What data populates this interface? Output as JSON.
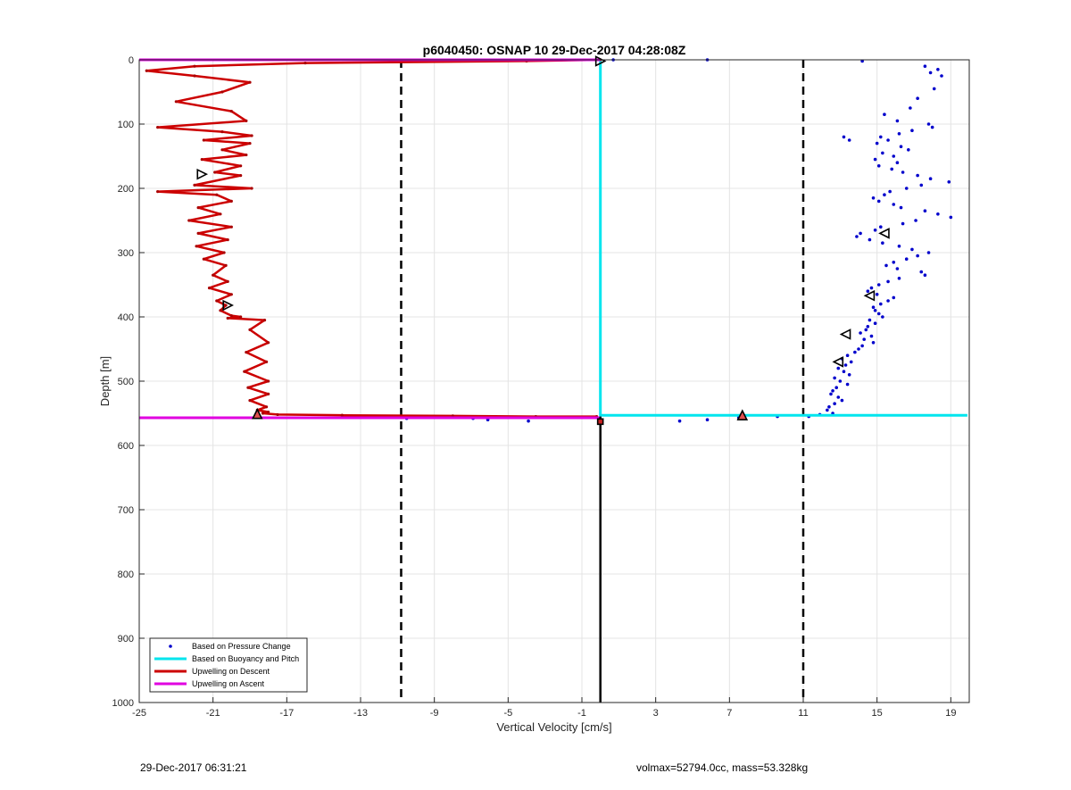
{
  "chart_data": {
    "type": "line",
    "title": "p6040450: OSNAP 10 29-Dec-2017 04:28:08Z",
    "xlabel": "Vertical Velocity [cm/s]",
    "ylabel": "Depth [m]",
    "xlim": [
      -25,
      20
    ],
    "ylim": [
      0,
      1000
    ],
    "y_reversed": true,
    "x_ticks": [
      -25,
      -21,
      -17,
      -13,
      -9,
      -5,
      -1,
      3,
      7,
      11,
      15,
      19
    ],
    "y_ticks": [
      0,
      100,
      200,
      300,
      400,
      500,
      600,
      700,
      800,
      900,
      1000
    ],
    "grid": true,
    "legend_position": "bottom-left",
    "series": [
      {
        "name": "Based on Pressure Change",
        "style": "points",
        "color": "#0000cc",
        "x": [
          14.2,
          17.6,
          18.3,
          17.9,
          18.5,
          18.1,
          17.2,
          16.8,
          15.4,
          16.1,
          17.8,
          18.0,
          16.9,
          16.2,
          15.2,
          15.6,
          15.0,
          16.3,
          16.7,
          15.3,
          15.9,
          14.9,
          16.1,
          13.2,
          13.5,
          15.1,
          15.8,
          16.4,
          17.2,
          17.9,
          18.9,
          17.4,
          16.6,
          15.7,
          15.4,
          14.8,
          15.1,
          15.9,
          16.3,
          17.6,
          18.3,
          19.0,
          17.1,
          16.4,
          15.2,
          14.9,
          14.1,
          13.9,
          14.6,
          15.3,
          16.2,
          16.9,
          17.8,
          17.2,
          16.6,
          15.9,
          15.5,
          16.1,
          17.4,
          17.6,
          16.2,
          15.6,
          15.1,
          14.7,
          14.5,
          15.0,
          15.9,
          15.6,
          15.2,
          14.8,
          14.9,
          15.1,
          15.3,
          14.6,
          14.9,
          14.5,
          14.4,
          14.1,
          14.7,
          14.3,
          14.8,
          14.2,
          14.0,
          13.8,
          13.4,
          13.1,
          13.6,
          13.3,
          12.9,
          13.2,
          13.5,
          12.7,
          13.0,
          13.4,
          12.8,
          12.6,
          12.5,
          12.9,
          13.1,
          12.7,
          12.4,
          12.3,
          12.6,
          11.9,
          11.3,
          9.6,
          7.5,
          5.8,
          4.3,
          -3.9,
          -6.1,
          -6.9,
          -10.5,
          0.7,
          5.8
        ],
        "y": [
          2,
          10,
          15,
          20,
          25,
          45,
          60,
          75,
          85,
          95,
          100,
          105,
          110,
          115,
          120,
          125,
          130,
          135,
          140,
          145,
          150,
          155,
          160,
          120,
          125,
          165,
          170,
          175,
          180,
          185,
          190,
          195,
          200,
          205,
          210,
          215,
          220,
          225,
          230,
          235,
          240,
          245,
          250,
          255,
          260,
          265,
          270,
          275,
          280,
          285,
          290,
          295,
          300,
          305,
          310,
          315,
          320,
          325,
          330,
          335,
          340,
          345,
          350,
          355,
          360,
          365,
          370,
          375,
          380,
          385,
          390,
          395,
          400,
          405,
          410,
          415,
          420,
          425,
          430,
          435,
          440,
          445,
          450,
          455,
          460,
          465,
          470,
          475,
          480,
          485,
          490,
          495,
          500,
          505,
          510,
          515,
          520,
          525,
          530,
          535,
          540,
          545,
          550,
          552,
          555,
          555,
          557,
          560,
          562,
          562,
          560,
          558,
          558,
          0,
          0
        ]
      },
      {
        "name": "Based on Buoyancy and Pitch",
        "style": "line",
        "color": "#00e5ee",
        "x": [
          0.0,
          0.0,
          0.0,
          0.0,
          19.9
        ],
        "y": [
          0,
          100,
          300,
          553,
          553
        ]
      },
      {
        "name": "Upwelling on Descent",
        "style": "line",
        "color": "#cc0000",
        "x": [
          0.0,
          -4.0,
          -16.0,
          -22.0,
          -24.6,
          -22.0,
          -19.0,
          -20.5,
          -23.0,
          -20.0,
          -19.2,
          -24.0,
          -20.5,
          -18.9,
          -21.5,
          -19.0,
          -20.5,
          -19.2,
          -21.6,
          -19.5,
          -20.9,
          -19.5,
          -22.0,
          -18.9,
          -24.0,
          -20.8,
          -20.0,
          -21.8,
          -20.6,
          -22.3,
          -20.0,
          -21.8,
          -20.2,
          -21.9,
          -20.4,
          -21.5,
          -20.3,
          -21.0,
          -20.2,
          -21.2,
          -20.0,
          -20.8,
          -20.3,
          -20.6,
          -20.0,
          -19.5,
          -20.2,
          -18.2,
          -19.0,
          -18.0,
          -19.2,
          -18.1,
          -19.3,
          -18.0,
          -19.1,
          -18.0,
          -19.0,
          -18.1,
          -18.6,
          -18.0,
          -18.3,
          -17.5,
          -14.0,
          -8.0,
          -3.5,
          -0.2
        ],
        "y": [
          0,
          2,
          5,
          10,
          17,
          25,
          35,
          50,
          65,
          80,
          95,
          105,
          112,
          118,
          125,
          130,
          140,
          148,
          155,
          165,
          175,
          180,
          195,
          200,
          205,
          210,
          220,
          230,
          240,
          250,
          260,
          270,
          280,
          290,
          300,
          310,
          320,
          335,
          345,
          355,
          365,
          375,
          382,
          390,
          398,
          400,
          402,
          405,
          420,
          440,
          455,
          470,
          485,
          500,
          510,
          520,
          530,
          540,
          545,
          548,
          550,
          552,
          553,
          554,
          555,
          555
        ]
      },
      {
        "name": "Upwelling on Ascent",
        "style": "line",
        "color": "#e000e0",
        "x": [
          -25.0,
          0.0
        ],
        "y": [
          0,
          0
        ],
        "x2": [
          -25.0,
          0.0
        ],
        "y2": [
          557,
          557
        ]
      },
      {
        "name": "",
        "style": "line",
        "color": "#000000",
        "x": [
          0.0,
          0.0
        ],
        "y": [
          555,
          1000
        ]
      }
    ],
    "reference_lines": [
      {
        "style": "dashed",
        "color": "#000000",
        "x": -10.8
      },
      {
        "style": "dashed",
        "color": "#000000",
        "x": 11.0
      }
    ],
    "markers": [
      {
        "shape": "triangle-right",
        "x": 0.0,
        "y": 2
      },
      {
        "shape": "triangle-right",
        "x": -21.6,
        "y": 178
      },
      {
        "shape": "triangle-right",
        "x": -20.2,
        "y": 382
      },
      {
        "shape": "triangle-up-filled",
        "x": -18.6,
        "y": 551
      },
      {
        "shape": "triangle-up-filled",
        "x": 7.7,
        "y": 553
      },
      {
        "shape": "square-filled",
        "x": 0.0,
        "y": 563
      },
      {
        "shape": "triangle-left",
        "x": 15.4,
        "y": 270
      },
      {
        "shape": "triangle-left",
        "x": 14.6,
        "y": 367
      },
      {
        "shape": "triangle-left",
        "x": 13.3,
        "y": 427
      },
      {
        "shape": "triangle-left",
        "x": 12.9,
        "y": 470
      }
    ]
  },
  "footer": {
    "timestamp": "29-Dec-2017 06:31:21",
    "info": "volmax=52794.0cc, mass=53.328kg"
  }
}
